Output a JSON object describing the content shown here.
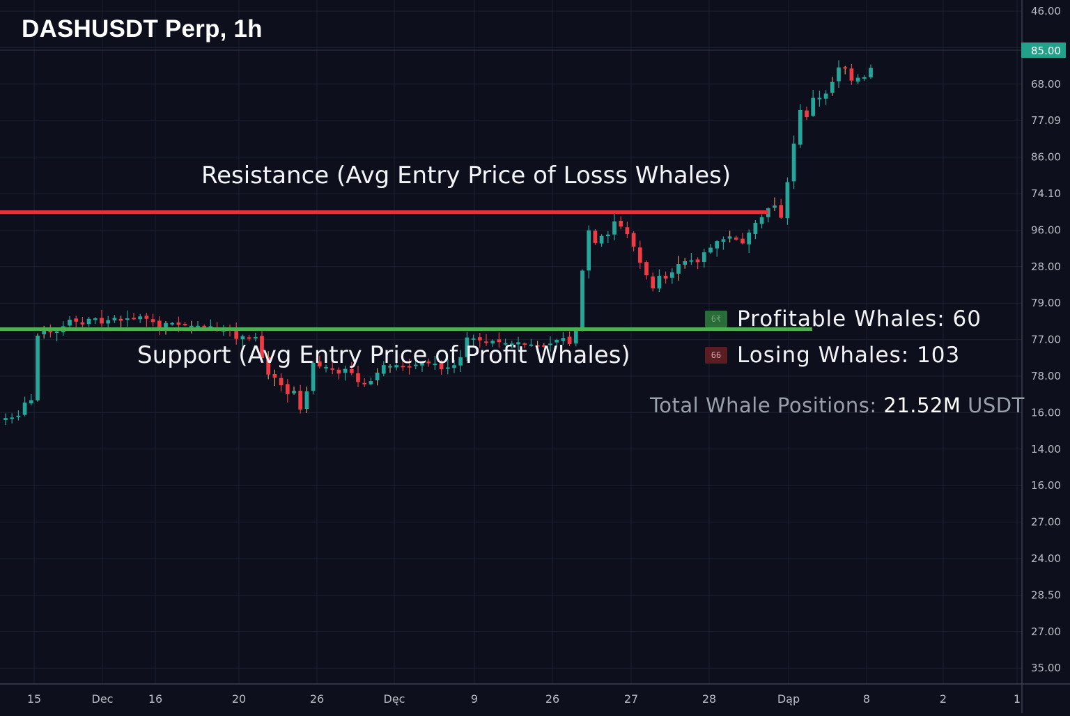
{
  "chart_data": {
    "type": "candlestick",
    "title": "DASHUSDT Perp, 1h",
    "colors": {
      "background": "#0d0f1c",
      "up": "#26a69a",
      "down": "#ef3b44",
      "resistance": "#e8323a",
      "support": "#4caf50",
      "grid": "#1c2030"
    },
    "y_axis_labels": [
      "46.00",
      "85.00",
      "68.00",
      "77.09",
      "86.00",
      "74.10",
      "96.00",
      "28.00",
      "79.00",
      "77.00",
      "78.00",
      "16.00",
      "14.00",
      "16.00",
      "27.00",
      "24.00",
      "28.50",
      "27.00",
      "35.00"
    ],
    "current_price_label": "85.00",
    "x_axis_labels": [
      "15",
      "Dec",
      "16",
      "20",
      "26",
      "Dęc",
      "9",
      "26",
      "27",
      "28",
      "Dąp",
      "8",
      "2",
      "1"
    ],
    "ylim": [
      0,
      100
    ],
    "resistance": {
      "label": "Resistance (Avg Entry Price of Losss Whales)",
      "value": 66
    },
    "support": {
      "label": "Support (Avg Entry Price of Profit Whales)",
      "value": 41
    },
    "candles_close": [
      22.0,
      22.1,
      22.5,
      25.3,
      25.8,
      39.6,
      41.3,
      40.3,
      40.5,
      41.6,
      43.0,
      42.6,
      42.0,
      43.2,
      43.3,
      42.2,
      42.9,
      43.4,
      42.8,
      43.3,
      43.2,
      43.7,
      43.2,
      42.5,
      41.3,
      42.3,
      42.3,
      41.9,
      41.9,
      41.7,
      41.7,
      41.4,
      41.6,
      40.7,
      40.9,
      40.8,
      38.9,
      39.5,
      39.1,
      39.3,
      34.8,
      31.3,
      30.6,
      29.0,
      27.1,
      27.8,
      23.8,
      27.7,
      33.8,
      33.0,
      32.9,
      32.4,
      31.5,
      32.5,
      31.6,
      29.7,
      29.2,
      29.9,
      31.7,
      33.3,
      33.1,
      33.3,
      33.0,
      33.0,
      33.4,
      33.8,
      33.7,
      33.6,
      32.4,
      32.8,
      33.3,
      35.0,
      39.2,
      39.0,
      38.6,
      38.1,
      38.5,
      38.2,
      38.0,
      37.9,
      38.2,
      37.9,
      37.7,
      37.3,
      37.3,
      37.9,
      38.7,
      39.1,
      37.8,
      41.2,
      53.5,
      62.1,
      59.4,
      60.9,
      61.2,
      64.0,
      62.9,
      61.3,
      58.6,
      55.2,
      52.5,
      49.7,
      52.4,
      51.8,
      53.1,
      54.9,
      55.5,
      55.7,
      55.3,
      57.4,
      58.4,
      59.8,
      60.2,
      60.8,
      60.1,
      59.3,
      61.6,
      63.7,
      64.9,
      66.8,
      67.4,
      64.8,
      72.4,
      80.6,
      87.8,
      86.3,
      90.4,
      90.4,
      91.3,
      93.8,
      96.9,
      96.9,
      94.1,
      94.7,
      94.8,
      96.8
    ]
  },
  "legend": {
    "profitable": {
      "swatch_text": "6₹",
      "label": "Profitable Whales: 60"
    },
    "losing": {
      "swatch_text": "66",
      "label": "Losing Whales: 103"
    }
  },
  "total_positions": {
    "prefix": "Total Whale Positions:",
    "value": "21.52M",
    "unit": "USDT"
  }
}
